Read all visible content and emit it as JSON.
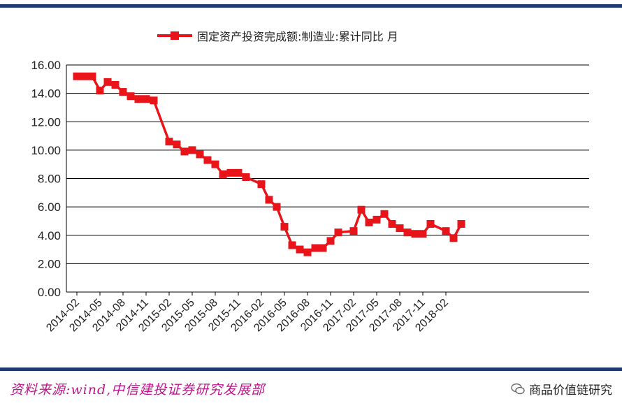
{
  "chart_data": {
    "type": "line",
    "legend": "固定资产投资完成额:制造业:累计同比 月",
    "legend_position": "top-center",
    "ylim": [
      0,
      16
    ],
    "yticks": [
      "0.00",
      "2.00",
      "4.00",
      "6.00",
      "8.00",
      "10.00",
      "12.00",
      "14.00",
      "16.00"
    ],
    "xticks": [
      "2014-02",
      "2014-05",
      "2014-08",
      "2014-11",
      "2015-02",
      "2015-05",
      "2015-08",
      "2015-11",
      "2016-02",
      "2016-05",
      "2016-08",
      "2016-11",
      "2017-02",
      "2017-05",
      "2017-08",
      "2017-11",
      "2018-02"
    ],
    "grid": true,
    "color": "#e8141a",
    "series": [
      {
        "name": "固定资产投资完成额:制造业:累计同比 月",
        "x": [
          "2014-02",
          "2014-03",
          "2014-04",
          "2014-05",
          "2014-06",
          "2014-07",
          "2014-08",
          "2014-09",
          "2014-10",
          "2014-11",
          "2014-12",
          "2015-02",
          "2015-03",
          "2015-04",
          "2015-05",
          "2015-06",
          "2015-07",
          "2015-08",
          "2015-09",
          "2015-10",
          "2015-11",
          "2015-12",
          "2016-02",
          "2016-03",
          "2016-04",
          "2016-05",
          "2016-06",
          "2016-07",
          "2016-08",
          "2016-09",
          "2016-10",
          "2016-11",
          "2016-12",
          "2017-02",
          "2017-03",
          "2017-04",
          "2017-05",
          "2017-06",
          "2017-07",
          "2017-08",
          "2017-09",
          "2017-10",
          "2017-11",
          "2017-12",
          "2018-02",
          "2018-03",
          "2018-04"
        ],
        "values": [
          15.2,
          15.2,
          15.2,
          14.2,
          14.8,
          14.6,
          14.1,
          13.8,
          13.6,
          13.6,
          13.5,
          10.6,
          10.4,
          9.9,
          10.0,
          9.7,
          9.3,
          9.0,
          8.3,
          8.4,
          8.4,
          8.1,
          7.6,
          6.5,
          6.0,
          4.6,
          3.3,
          3.0,
          2.8,
          3.1,
          3.1,
          3.6,
          4.2,
          4.3,
          5.8,
          4.9,
          5.1,
          5.5,
          4.8,
          4.5,
          4.2,
          4.1,
          4.1,
          4.8,
          4.3,
          3.8,
          4.8
        ]
      }
    ]
  },
  "footer": {
    "source": "资料来源:wind,中信建投证券研究发展部",
    "brand": "商品价值链研究"
  },
  "colors": {
    "rule": "#1f3a6e",
    "series": "#e8141a",
    "source_text": "#c0148c"
  }
}
